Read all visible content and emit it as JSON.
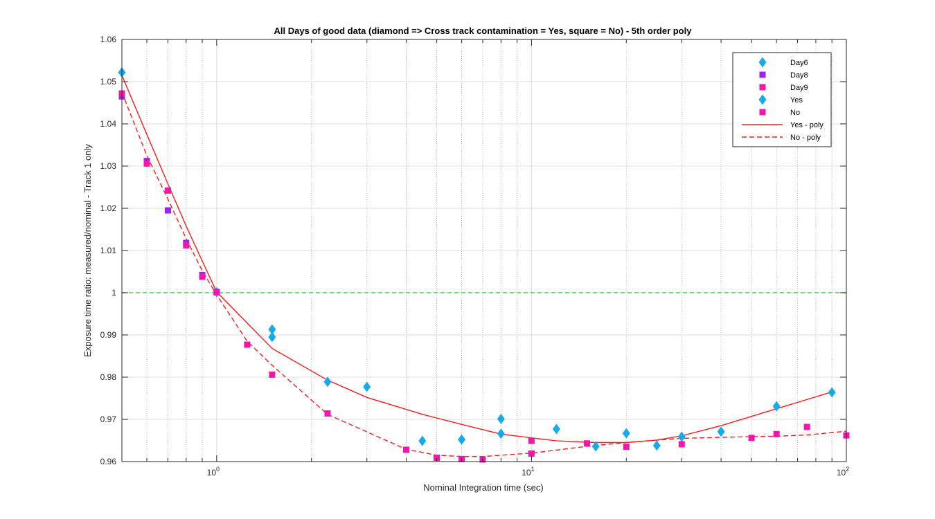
{
  "chart_data": {
    "type": "scatter",
    "title": "All Days of good data  (diamond => Cross track contamination = Yes, square = No) - 5th order poly",
    "xlabel": "Nominal Integration time (sec)",
    "ylabel": "Exposure time ratio: measured/nominal - Track 1  only",
    "x_scale": "log",
    "xlim": [
      0.5,
      100
    ],
    "ylim": [
      0.96,
      1.06
    ],
    "x_ticks": [
      {
        "base": "10",
        "exp": "0",
        "value": 1
      },
      {
        "base": "10",
        "exp": "1",
        "value": 10
      },
      {
        "base": "10",
        "exp": "2",
        "value": 100
      }
    ],
    "y_ticks": [
      {
        "label": "0.96",
        "value": 0.96
      },
      {
        "label": "0.97",
        "value": 0.97
      },
      {
        "label": "0.98",
        "value": 0.98
      },
      {
        "label": "0.99",
        "value": 0.99
      },
      {
        "label": "1",
        "value": 1.0
      },
      {
        "label": "1.01",
        "value": 1.01
      },
      {
        "label": "1.02",
        "value": 1.02
      },
      {
        "label": "1.03",
        "value": 1.03
      },
      {
        "label": "1.04",
        "value": 1.04
      },
      {
        "label": "1.05",
        "value": 1.05
      },
      {
        "label": "1.06",
        "value": 1.06
      }
    ],
    "grid": true,
    "legend_position": "top-right",
    "reference_line": {
      "y": 1.0,
      "color": "#33dd33",
      "style": "dashed"
    },
    "colors": {
      "day6": "#16a9ec",
      "day8": "#a020f0",
      "day9": "#f516a9",
      "yes": "#16a9ec",
      "no": "#f516a9",
      "fit": "#ff1a1a"
    },
    "series": [
      {
        "name": "Day6",
        "marker": "diamond",
        "color": "#16a9ec",
        "x": [
          0.5,
          1.0,
          1.5,
          1.5,
          2.25,
          3.0,
          4.5,
          6.0,
          8.0,
          8.0,
          12.0,
          16.0,
          20.0,
          25.0,
          30.0,
          40.0,
          60.0,
          90.0
        ],
        "y": [
          1.0522,
          1.0001,
          0.9913,
          0.9895,
          0.9789,
          0.9777,
          0.9649,
          0.9652,
          0.9701,
          0.9666,
          0.9677,
          0.9636,
          0.9667,
          0.9638,
          0.9659,
          0.9671,
          0.9731,
          0.9764
        ]
      },
      {
        "name": "Day8",
        "marker": "square",
        "color": "#a020f0",
        "x": [
          0.5,
          0.6,
          0.7,
          0.8,
          0.9,
          1.0
        ],
        "y": [
          1.0465,
          1.0312,
          1.0195,
          1.0118,
          1.0042,
          1.0002
        ]
      },
      {
        "name": "Day9",
        "marker": "square",
        "color": "#f516a9",
        "x": [
          0.5,
          0.6,
          0.7,
          0.8,
          0.9,
          1.0,
          1.25,
          1.5,
          2.25,
          4.0,
          5.0,
          6.0,
          7.0,
          10.0,
          10.0,
          15.0,
          20.0,
          30.0,
          50.0,
          60.0,
          75.0,
          100.0
        ],
        "y": [
          1.0472,
          1.0306,
          1.0242,
          1.0112,
          1.0038,
          1.0001,
          0.9877,
          0.9806,
          0.9714,
          0.9628,
          0.9609,
          0.9606,
          0.9605,
          0.9619,
          0.9649,
          0.9643,
          0.9635,
          0.9641,
          0.9656,
          0.9665,
          0.9682,
          0.9662
        ]
      }
    ],
    "fits": [
      {
        "name": "Yes - poly",
        "style": "solid",
        "color": "#ff1a1a",
        "x": [
          0.5,
          0.6,
          0.7,
          0.8,
          0.9,
          1.0,
          1.5,
          2.25,
          3.0,
          4.5,
          6.0,
          8.0,
          12.0,
          16.0,
          20.0,
          25.0,
          30.0,
          40.0,
          60.0,
          90.0
        ],
        "y": [
          1.0515,
          1.0375,
          1.0258,
          1.0158,
          1.0075,
          1.0002,
          0.9868,
          0.9793,
          0.9752,
          0.9712,
          0.9688,
          0.9665,
          0.9649,
          0.9645,
          0.9645,
          0.9651,
          0.9661,
          0.9685,
          0.9725,
          0.9765
        ]
      },
      {
        "name": "No - poly",
        "style": "dashed",
        "color": "#ff1a1a",
        "x": [
          0.5,
          0.6,
          0.7,
          0.8,
          0.9,
          1.0,
          1.25,
          1.5,
          2.25,
          4.0,
          5.0,
          6.0,
          7.0,
          10.0,
          15.0,
          20.0,
          30.0,
          50.0,
          60.0,
          75.0,
          100.0
        ],
        "y": [
          1.0475,
          1.0325,
          1.0222,
          1.0128,
          1.0052,
          0.9995,
          0.9885,
          0.9828,
          0.9712,
          0.9629,
          0.9615,
          0.9612,
          0.9612,
          0.962,
          0.9636,
          0.9645,
          0.9655,
          0.9659,
          0.966,
          0.9663,
          0.9672
        ]
      }
    ],
    "legend": [
      {
        "label": "Day6",
        "kind": "diamond",
        "color": "#16a9ec"
      },
      {
        "label": "Day8",
        "kind": "square",
        "color": "#a020f0"
      },
      {
        "label": "Day9",
        "kind": "square",
        "color": "#f516a9"
      },
      {
        "label": "Yes",
        "kind": "diamond",
        "color": "#16a9ec"
      },
      {
        "label": "No",
        "kind": "square",
        "color": "#f516a9"
      },
      {
        "label": "Yes - poly",
        "kind": "solid-line",
        "color": "#ff1a1a"
      },
      {
        "label": "No - poly",
        "kind": "dashed-line",
        "color": "#ff1a1a"
      }
    ]
  }
}
